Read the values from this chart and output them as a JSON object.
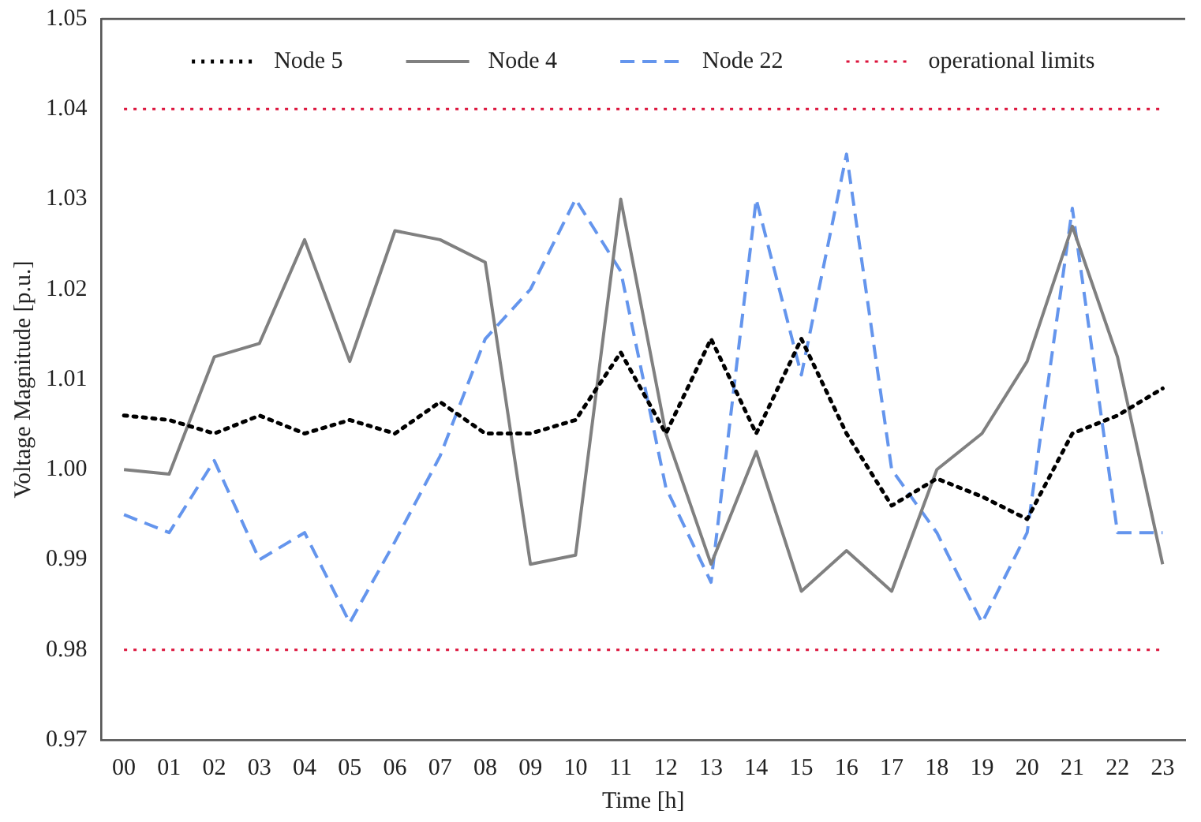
{
  "chart_data": {
    "type": "line",
    "xlabel": "Time [h]",
    "ylabel": "Voltage Magnitude [p.u.]",
    "categories": [
      "00",
      "01",
      "02",
      "03",
      "04",
      "05",
      "06",
      "07",
      "08",
      "09",
      "10",
      "11",
      "12",
      "13",
      "14",
      "15",
      "16",
      "17",
      "18",
      "19",
      "20",
      "21",
      "22",
      "23"
    ],
    "series": [
      {
        "name": "Node 5",
        "color": "#000000",
        "line_style": "dotted",
        "values": [
          1.006,
          1.0055,
          1.004,
          1.006,
          1.004,
          1.0055,
          1.004,
          1.0075,
          1.004,
          1.004,
          1.0055,
          1.013,
          1.004,
          1.0145,
          1.004,
          1.0145,
          1.004,
          0.996,
          0.999,
          0.997,
          0.9945,
          1.004,
          1.006,
          1.009
        ]
      },
      {
        "name": "Node 4",
        "color": "#808080",
        "line_style": "solid",
        "values": [
          1.0,
          0.9995,
          1.0125,
          1.014,
          1.0255,
          1.012,
          1.0265,
          1.0255,
          1.023,
          0.9895,
          0.9905,
          1.03,
          1.004,
          0.9895,
          1.002,
          0.9865,
          0.991,
          0.9865,
          1.0,
          1.004,
          1.012,
          1.027,
          1.0125,
          0.9895
        ]
      },
      {
        "name": "Node 22",
        "color": "#6495ed",
        "line_style": "dashed",
        "values": [
          0.995,
          0.993,
          1.001,
          0.99,
          0.993,
          0.983,
          0.992,
          1.0015,
          1.0145,
          1.02,
          1.03,
          1.022,
          0.998,
          0.9875,
          1.03,
          1.0105,
          1.035,
          1.0,
          0.993,
          0.983,
          0.993,
          1.029,
          0.993,
          0.993
        ]
      }
    ],
    "ref_lines": [
      {
        "axis": "y",
        "value": 1.04,
        "label": "operational limits",
        "color": "#dc143c",
        "line_style": "dotted"
      },
      {
        "axis": "y",
        "value": 0.98,
        "color": "#dc143c",
        "line_style": "dotted"
      }
    ],
    "ylim": [
      0.97,
      1.05
    ],
    "yticks": [
      0.97,
      0.98,
      0.99,
      {
        "value": 1,
        "label": "1.00"
      },
      1.01,
      1.02,
      1.03,
      1.04,
      1.05
    ],
    "legend": "top",
    "grid": false,
    "marker": "none"
  }
}
